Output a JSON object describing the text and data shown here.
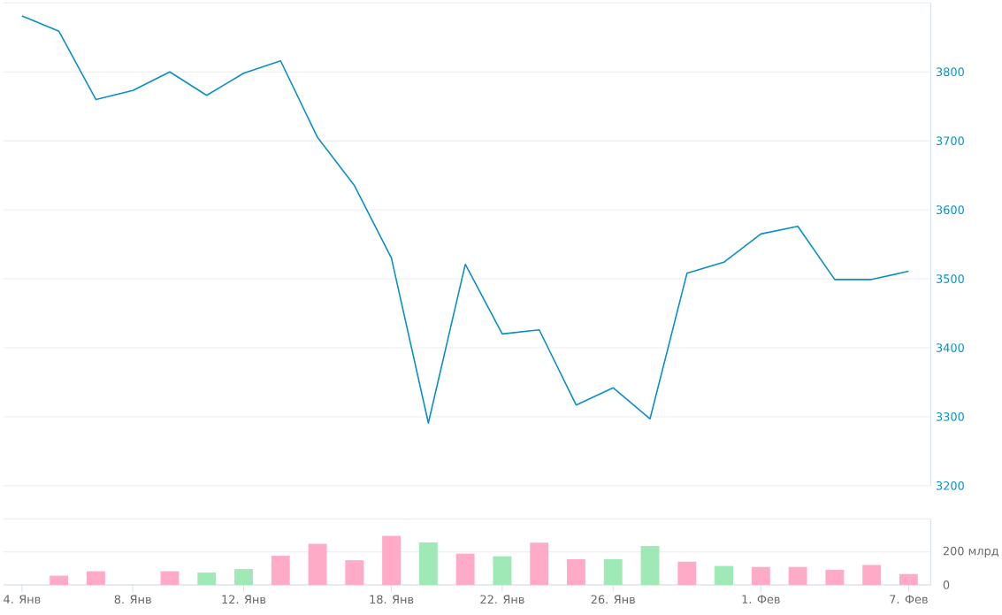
{
  "chart_data": [
    {
      "type": "line",
      "categories": [
        null,
        null,
        null,
        null,
        null,
        null,
        null,
        null,
        null,
        null,
        null,
        null,
        null,
        null,
        null,
        null,
        null,
        null,
        null,
        null,
        null,
        null,
        null,
        null,
        null
      ],
      "values": [
        3881,
        3859,
        3760,
        3773,
        3800,
        3766,
        3798,
        3816,
        3705,
        3635,
        3530,
        3291,
        3521,
        3420,
        3426,
        3317,
        3342,
        3297,
        3508,
        3524,
        3565,
        3576,
        3499,
        3499,
        3511
      ],
      "color": "#0a8fc4",
      "ylim": [
        3200,
        3900
      ],
      "yticks": [
        3200,
        3300,
        3400,
        3500,
        3600,
        3700,
        3800,
        {
          "value": 3900,
          "label": null
        }
      ],
      "grid": "y",
      "tick_labels": "y"
    },
    {
      "type": "bar",
      "categories": [
        "4. Янв",
        null,
        null,
        "8. Янв",
        null,
        null,
        "12. Янв",
        null,
        null,
        null,
        "18. Янв",
        null,
        null,
        "22. Янв",
        null,
        null,
        "26. Янв",
        null,
        null,
        null,
        "1. Фев",
        null,
        null,
        null,
        "7. Фев"
      ],
      "values": [
        null,
        56,
        83,
        null,
        83,
        75,
        96,
        177,
        250,
        150,
        298,
        258,
        190,
        174,
        256,
        156,
        156,
        236,
        141,
        115,
        109,
        109,
        92,
        121,
        66
      ],
      "colors": [
        null,
        "#ffabc7",
        "#ffabc7",
        null,
        "#ffabc7",
        "#9ee9b5",
        "#9ee9b5",
        "#ffabc7",
        "#ffabc7",
        "#ffabc7",
        "#ffabc7",
        "#9ee9b5",
        "#ffabc7",
        "#9ee9b5",
        "#ffabc7",
        "#ffabc7",
        "#9ee9b5",
        "#9ee9b5",
        "#ffabc7",
        "#9ee9b5",
        "#ffabc7",
        "#ffabc7",
        "#ffabc7",
        "#ffabc7",
        "#ffabc7"
      ],
      "ylim": [
        0,
        400
      ],
      "yticks": [
        0,
        {
          "value": 200,
          "label": "200 млрд"
        },
        {
          "value": 400,
          "label": null
        }
      ],
      "grid": "y"
    }
  ]
}
